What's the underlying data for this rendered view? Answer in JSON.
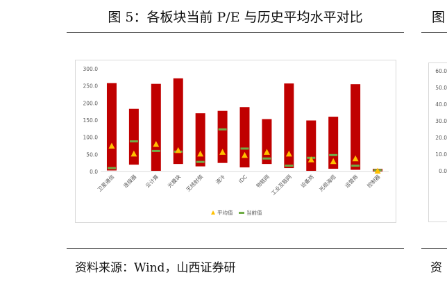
{
  "header": {
    "title": "图 5：各板块当前 P/E 与历史平均水平对比"
  },
  "footer": {
    "source": "资料来源：Wind，山西证券研"
  },
  "clipped": {
    "title_fragment": "图",
    "source_fragment": "资",
    "axis_ticks": [
      "60.0",
      "50.0",
      "40.0",
      "30.0",
      "20.0",
      "10.0",
      "0.0"
    ]
  },
  "colors": {
    "bar": "#c00000",
    "avg_marker": "#ffc000",
    "current_marker": "#70ad47"
  },
  "chart_data": {
    "type": "bar",
    "ylim": [
      0,
      300
    ],
    "yticks": [
      "300.0",
      "250.0",
      "200.0",
      "150.0",
      "100.0",
      "50.0",
      "0.0"
    ],
    "categories": [
      "卫星通信",
      "连接器",
      "云计算",
      "光模块",
      "无线射频",
      "液冷",
      "IDC",
      "物联网",
      "工业互联网",
      "设备商",
      "光缆海缆",
      "运营商",
      "控制器"
    ],
    "range_low": [
      3,
      20,
      2,
      22,
      15,
      25,
      12,
      22,
      10,
      2,
      8,
      5,
      0
    ],
    "range_high": [
      258,
      183,
      256,
      272,
      170,
      177,
      188,
      153,
      257,
      149,
      160,
      255,
      8
    ],
    "series": [
      {
        "name": "平均值",
        "values": [
          75,
          52,
          80,
          62,
          52,
          57,
          48,
          57,
          52,
          35,
          30,
          38,
          2
        ]
      },
      {
        "name": "当前值",
        "values": [
          10,
          88,
          60,
          58,
          28,
          123,
          67,
          38,
          17,
          40,
          48,
          17,
          4
        ]
      }
    ],
    "legend_position": "bottom",
    "grid": false
  }
}
